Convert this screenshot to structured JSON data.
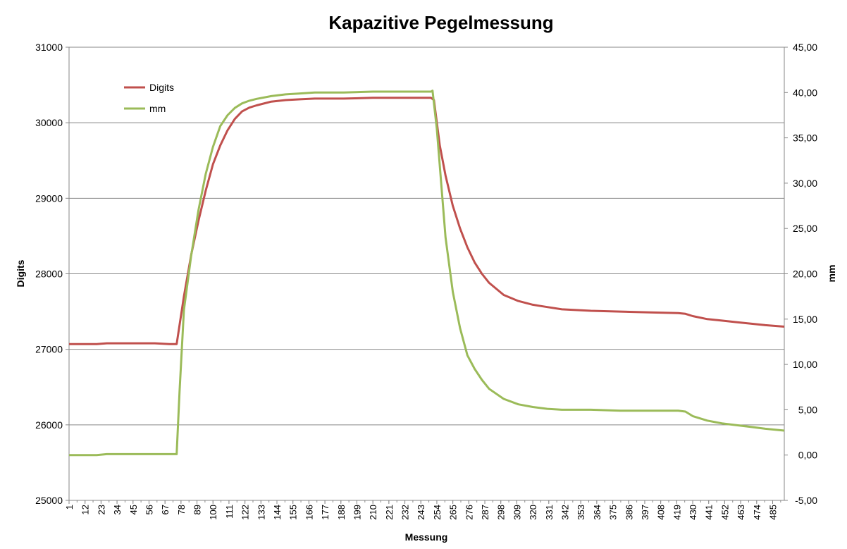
{
  "chart_data": {
    "type": "line",
    "title": "Kapazitive Pegelmessung",
    "xlabel": "Messung",
    "ylabel_left": "Digits",
    "ylabel_right": "mm",
    "x_range": [
      1,
      493
    ],
    "x_tick_labels": [
      "1",
      "12",
      "23",
      "34",
      "45",
      "56",
      "67",
      "78",
      "89",
      "100",
      "111",
      "122",
      "133",
      "144",
      "155",
      "166",
      "177",
      "188",
      "199",
      "210",
      "221",
      "232",
      "243",
      "254",
      "265",
      "276",
      "287",
      "298",
      "309",
      "320",
      "331",
      "342",
      "353",
      "364",
      "375",
      "386",
      "397",
      "408",
      "419",
      "430",
      "441",
      "452",
      "463",
      "474",
      "485"
    ],
    "y_left_ticks": [
      "25000",
      "26000",
      "27000",
      "28000",
      "29000",
      "30000",
      "31000"
    ],
    "y_left_lim": [
      25000,
      31000
    ],
    "y_right_ticks": [
      "-5,00",
      "0,00",
      "5,00",
      "10,00",
      "15,00",
      "20,00",
      "25,00",
      "30,00",
      "35,00",
      "40,00",
      "45,00"
    ],
    "y_right_lim": [
      -5,
      45
    ],
    "grid": "horizontal",
    "legend_position": "top-left",
    "series": [
      {
        "name": "Digits",
        "axis": "left",
        "color": "#C0504D",
        "x": [
          1,
          20,
          27,
          60,
          70,
          75,
          80,
          85,
          90,
          95,
          100,
          105,
          110,
          115,
          120,
          125,
          130,
          140,
          150,
          160,
          170,
          190,
          210,
          230,
          250,
          252,
          256,
          260,
          265,
          270,
          275,
          280,
          285,
          290,
          300,
          310,
          320,
          330,
          340,
          360,
          380,
          400,
          420,
          425,
          430,
          440,
          450,
          460,
          470,
          480,
          493
        ],
        "y": [
          27070,
          27070,
          27080,
          27080,
          27070,
          27070,
          27700,
          28250,
          28700,
          29100,
          29450,
          29700,
          29900,
          30050,
          30150,
          30200,
          30230,
          30280,
          30300,
          30310,
          30320,
          30320,
          30330,
          30330,
          30330,
          30300,
          29700,
          29300,
          28900,
          28600,
          28350,
          28150,
          28000,
          27880,
          27720,
          27640,
          27590,
          27560,
          27530,
          27510,
          27500,
          27490,
          27480,
          27470,
          27440,
          27400,
          27380,
          27360,
          27340,
          27320,
          27300
        ]
      },
      {
        "name": "mm",
        "axis": "right",
        "color": "#9BBB59",
        "x": [
          1,
          20,
          27,
          70,
          75,
          77,
          80,
          85,
          90,
          95,
          100,
          105,
          110,
          115,
          120,
          125,
          130,
          140,
          150,
          160,
          170,
          190,
          210,
          230,
          250,
          251,
          254,
          257,
          260,
          265,
          270,
          275,
          280,
          285,
          290,
          300,
          310,
          320,
          330,
          340,
          360,
          380,
          400,
          420,
          425,
          430,
          440,
          450,
          460,
          470,
          480,
          493
        ],
        "y": [
          0,
          0,
          0.1,
          0.1,
          0.1,
          7,
          16,
          22,
          27,
          31,
          34,
          36.3,
          37.5,
          38.3,
          38.8,
          39.1,
          39.3,
          39.6,
          39.8,
          39.9,
          40,
          40,
          40.1,
          40.1,
          40.1,
          40.2,
          36,
          30,
          24,
          18,
          14,
          11,
          9.5,
          8.3,
          7.3,
          6.2,
          5.6,
          5.3,
          5.1,
          5,
          5,
          4.9,
          4.9,
          4.9,
          4.8,
          4.3,
          3.8,
          3.5,
          3.3,
          3.1,
          2.9,
          2.7
        ]
      }
    ]
  }
}
